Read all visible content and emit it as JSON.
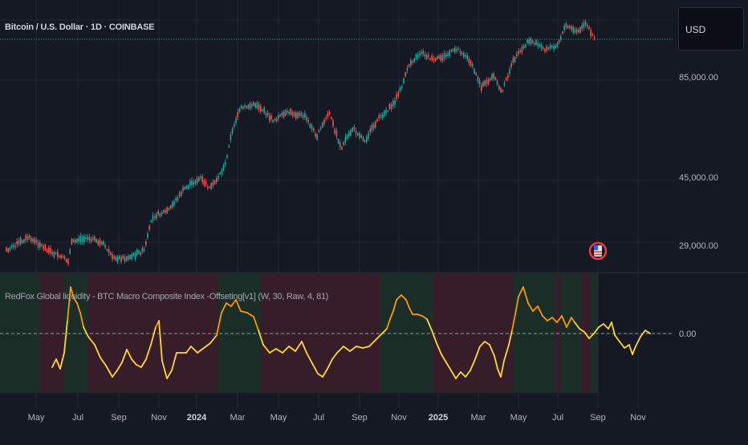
{
  "header": {
    "symbol_title": "Bitcoin / U.S. Dollar · 1D · COINBASE"
  },
  "indicator": {
    "title": "RedFox Global liquidity - BTC Macro Composite Index -Offseting[v1] (W, 30, Raw, 4, 81)"
  },
  "price_scale": {
    "currency": "USD",
    "ticks": [
      "85,000.00",
      "45,000.00",
      "29,000.00"
    ]
  },
  "indicator_scale": {
    "tick": "0.00"
  },
  "time_axis": {
    "labels": [
      "May",
      "Jul",
      "Sep",
      "Nov",
      "2024",
      "Mar",
      "May",
      "Jul",
      "Sep",
      "Nov",
      "2025",
      "Mar",
      "May",
      "Jul",
      "Sep",
      "Nov"
    ],
    "bold_labels": [
      "2024",
      "2025"
    ]
  },
  "colors": {
    "background": "#151924",
    "grid": "#222632",
    "candle_up": "#26a69a",
    "candle_down": "#ef5350",
    "price_line": "#26a69a",
    "indicator_yellow": "#fdd835",
    "indicator_orange": "#ff9800",
    "bg_red": "#3a1e2a",
    "bg_green": "#1c3028"
  },
  "marker": {
    "icon": "us-flag-event-icon"
  }
}
